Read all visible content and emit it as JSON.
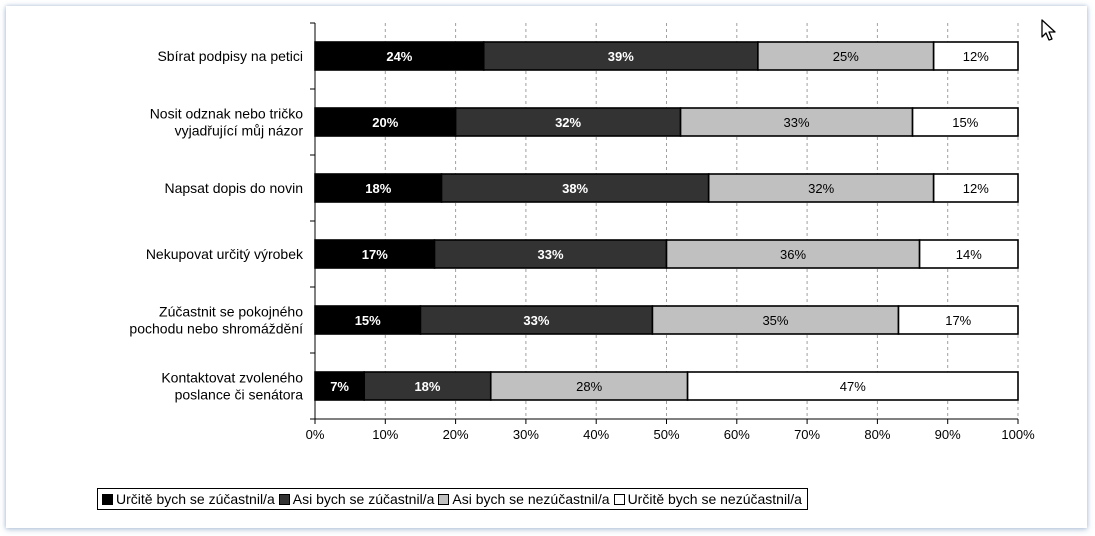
{
  "chart_data": {
    "type": "bar",
    "orientation": "horizontal",
    "stacked": true,
    "categories": [
      "Sbírat podpisy na petici",
      [
        "Nosit odznak nebo tričko",
        "vyjadřující můj názor"
      ],
      "Napsat dopis do novin",
      "Nekupovat určitý výrobek",
      [
        "Zúčastnit se pokojného",
        "pochodu nebo shromáždění"
      ],
      [
        "Kontaktovat zvoleného",
        "poslance či senátora"
      ]
    ],
    "series": [
      {
        "name": "Určitě bych se zúčastnil/a",
        "color": "#000000",
        "label_color": "#ffffff",
        "values": [
          24,
          20,
          18,
          17,
          15,
          7
        ]
      },
      {
        "name": "Asi bych se zúčastnil/a",
        "color": "#333333",
        "label_color": "#ffffff",
        "values": [
          39,
          32,
          38,
          33,
          33,
          18
        ]
      },
      {
        "name": "Asi bych se nezúčastnil/a",
        "color": "#c0c0c0",
        "label_color": "#000000",
        "values": [
          25,
          33,
          32,
          36,
          35,
          28
        ]
      },
      {
        "name": "Určitě bych se nezúčastnil/a",
        "color": "#ffffff",
        "label_color": "#000000",
        "values": [
          12,
          15,
          12,
          14,
          17,
          47
        ]
      }
    ],
    "xlim": [
      0,
      100
    ],
    "xticks": [
      "0%",
      "10%",
      "20%",
      "30%",
      "40%",
      "50%",
      "60%",
      "70%",
      "80%",
      "90%",
      "100%"
    ],
    "value_suffix": "%",
    "grid": "vertical dashed",
    "legend_position": "bottom"
  },
  "icons": {
    "cursor": "mouse-pointer-icon"
  }
}
